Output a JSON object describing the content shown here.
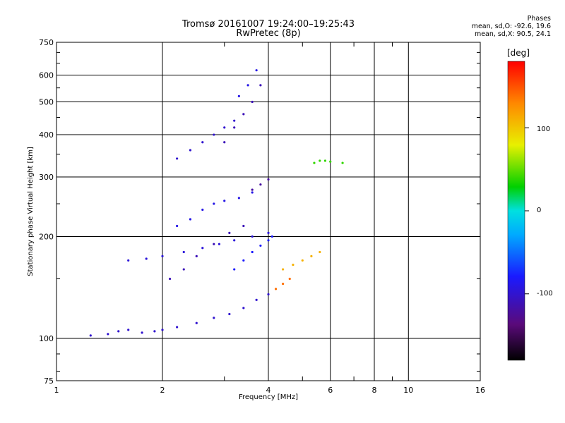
{
  "title": {
    "line1": "Tromsø 20161007 19:24:00–19:25:43",
    "line2": "RwPretec (8p)"
  },
  "stats": {
    "heading": "Phases",
    "line1": "mean, sd,O: -92.6, 19.6",
    "line2": "mean, sd,X: 90.5, 24.1"
  },
  "axes": {
    "xlabel": "Frequency [MHz]",
    "ylabel": "Stationary phase Virtual Height [km]",
    "x_ticks": [
      "1",
      "2",
      "4",
      "6",
      "8",
      "10",
      "16"
    ],
    "y_ticks": [
      "75",
      "100",
      "200",
      "300",
      "400",
      "500",
      "600",
      "750"
    ]
  },
  "colorbar": {
    "title": "[deg]",
    "ticks": [
      "100",
      "0",
      "-100"
    ]
  },
  "chart_data": {
    "type": "scatter",
    "x_scale": "log",
    "y_scale": "log",
    "xlim": [
      1,
      16
    ],
    "ylim": [
      75,
      750
    ],
    "x_ticks": [
      1,
      2,
      4,
      6,
      8,
      10,
      16
    ],
    "y_ticks": [
      75,
      100,
      200,
      300,
      400,
      500,
      600,
      750
    ],
    "color_range": [
      -180,
      180
    ],
    "color_ticks": [
      100,
      0,
      -100
    ],
    "xlabel": "Frequency [MHz]",
    "ylabel": "Stationary phase Virtual Height [km]",
    "colorbar_label": "[deg]",
    "traces": [
      {
        "x": [
          1.25,
          1.4,
          1.5,
          1.6,
          1.75,
          1.9,
          2.0,
          2.2,
          2.5,
          2.8,
          3.1,
          3.4,
          3.7,
          4.0
        ],
        "y": [
          102,
          103,
          105,
          106,
          104,
          105,
          106,
          108,
          111,
          115,
          118,
          123,
          130,
          135
        ],
        "phase": -100
      },
      {
        "x": [
          3.2,
          3.4,
          3.6,
          3.8,
          4.0,
          4.1
        ],
        "y": [
          160,
          170,
          180,
          188,
          195,
          200
        ],
        "phase": -80
      },
      {
        "x": [
          1.6,
          1.8,
          2.0,
          2.3,
          2.6,
          2.9,
          3.2,
          3.6,
          4.0
        ],
        "y": [
          170,
          172,
          175,
          180,
          185,
          190,
          195,
          200,
          205
        ],
        "phase": -95
      },
      {
        "x": [
          2.1,
          2.3,
          2.5,
          2.8,
          3.1,
          3.4
        ],
        "y": [
          150,
          160,
          175,
          190,
          205,
          215
        ],
        "phase": -110
      },
      {
        "x": [
          2.2,
          2.4,
          2.6,
          2.8,
          3.0,
          3.3,
          3.6
        ],
        "y": [
          215,
          225,
          240,
          250,
          255,
          260,
          270
        ],
        "phase": -90
      },
      {
        "x": [
          3.6,
          3.8,
          4.0
        ],
        "y": [
          275,
          285,
          295
        ],
        "phase": -120
      },
      {
        "x": [
          2.2,
          2.4,
          2.6,
          2.8,
          3.0,
          3.2
        ],
        "y": [
          340,
          360,
          380,
          400,
          420,
          440
        ],
        "phase": -100
      },
      {
        "x": [
          3.0,
          3.2,
          3.4,
          3.6,
          3.8
        ],
        "y": [
          380,
          420,
          460,
          500,
          560
        ],
        "phase": -110
      },
      {
        "x": [
          3.3,
          3.5,
          3.7
        ],
        "y": [
          520,
          560,
          620
        ],
        "phase": -90
      },
      {
        "x": [
          4.4,
          4.7,
          5.0,
          5.3,
          5.6
        ],
        "y": [
          160,
          165,
          170,
          175,
          180
        ],
        "phase": 110
      },
      {
        "x": [
          4.2,
          4.4,
          4.6
        ],
        "y": [
          140,
          145,
          150
        ],
        "phase": 140
      },
      {
        "x": [
          5.4,
          5.6,
          5.8,
          6.0,
          6.5
        ],
        "y": [
          330,
          335,
          335,
          333,
          330
        ],
        "phase": 40
      }
    ]
  }
}
